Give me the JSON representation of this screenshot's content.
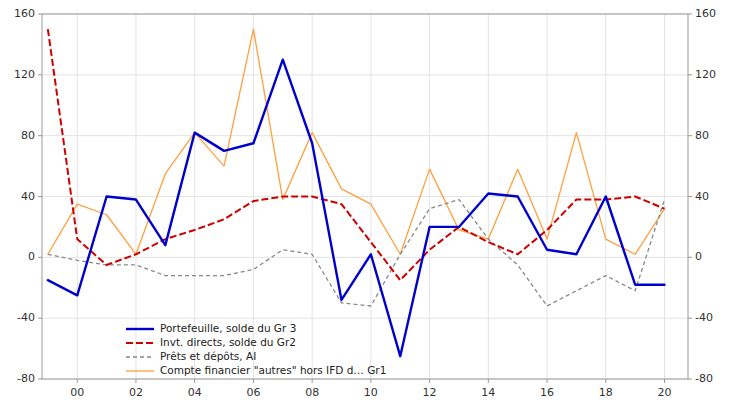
{
  "chart_data": {
    "type": "line",
    "x": [
      1999,
      2000,
      2001,
      2002,
      2003,
      2004,
      2005,
      2006,
      2007,
      2008,
      2009,
      2010,
      2011,
      2012,
      2013,
      2014,
      2015,
      2016,
      2017,
      2018,
      2019,
      2020
    ],
    "series": [
      {
        "name": "Portefeuille, solde du Gr 3",
        "color": "#0000CC",
        "line_style": "solid",
        "values": [
          -15,
          -25,
          40,
          38,
          8,
          82,
          70,
          75,
          130,
          75,
          -28,
          2,
          -65,
          20,
          20,
          42,
          40,
          5,
          2,
          40,
          -18,
          -18
        ]
      },
      {
        "name": "Invt. directs, solde du Gr2",
        "color": "#CC0000",
        "line_style": "dashed",
        "values": [
          150,
          12,
          -5,
          2,
          12,
          18,
          25,
          37,
          40,
          40,
          35,
          10,
          -15,
          5,
          20,
          10,
          2,
          18,
          38,
          38,
          40,
          32
        ]
      },
      {
        "name": "Prêts et dépôts, AI",
        "color": "#888888",
        "line_style": "dashed",
        "values": [
          2,
          -2,
          -5,
          -5,
          -12,
          -12,
          -12,
          -8,
          5,
          2,
          -30,
          -32,
          2,
          32,
          38,
          12,
          -5,
          -32,
          -22,
          -12,
          -22,
          38
        ]
      },
      {
        "name": "Compte financier \"autres\" hors IFD d… Gr1",
        "color": "#FFA040",
        "line_style": "solid",
        "values": [
          2,
          35,
          28,
          2,
          55,
          82,
          60,
          150,
          38,
          82,
          45,
          35,
          2,
          58,
          18,
          12,
          58,
          12,
          82,
          12,
          2,
          32
        ]
      }
    ],
    "xlim": [
      1998.8,
      2020.8
    ],
    "xticks": [
      {
        "value": 2000,
        "label": "00"
      },
      {
        "value": 2002,
        "label": "02"
      },
      {
        "value": 2004,
        "label": "04"
      },
      {
        "value": 2006,
        "label": "06"
      },
      {
        "value": 2008,
        "label": "08"
      },
      {
        "value": 2010,
        "label": "10"
      },
      {
        "value": 2012,
        "label": "12"
      },
      {
        "value": 2014,
        "label": "14"
      },
      {
        "value": 2016,
        "label": "16"
      },
      {
        "value": 2018,
        "label": "18"
      },
      {
        "value": 2020,
        "label": "20"
      }
    ],
    "ylim": [
      -80,
      160
    ],
    "yticks": [
      -80,
      -40,
      0,
      40,
      80,
      120,
      160
    ],
    "y2lim": [
      -80,
      160
    ],
    "y2ticks": [
      -80,
      -40,
      0,
      40,
      80,
      120,
      160
    ],
    "grid": true,
    "legend": "lower left"
  }
}
